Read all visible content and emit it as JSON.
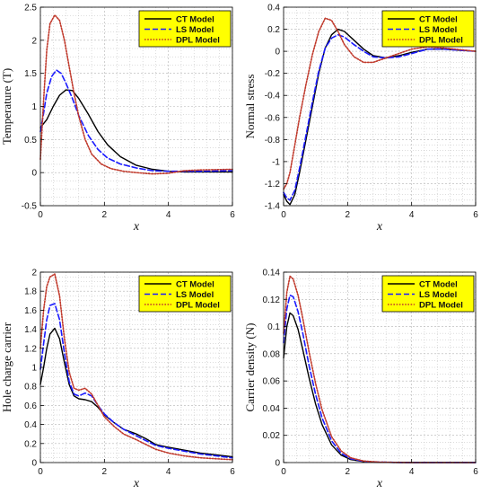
{
  "legend_fill": "#ffff00",
  "grid_color": "#b3b3b3",
  "chart_data": [
    {
      "type": "line",
      "ylabel": "Temperature (T)",
      "xlabel": "x",
      "xlim": [
        0,
        6
      ],
      "ylim": [
        -0.5,
        2.5
      ],
      "xticks": [
        "0",
        "2",
        "4",
        "6"
      ],
      "yticks": [
        "-0.5",
        "0",
        "0.5",
        "1",
        "1.5",
        "2",
        "2.5"
      ],
      "grid": true,
      "legend_position": "top-right",
      "series": [
        {
          "name": "CT Model",
          "color": "#000000",
          "dash": "solid",
          "x": [
            0,
            0.2,
            0.4,
            0.6,
            0.8,
            1.0,
            1.2,
            1.5,
            1.8,
            2.1,
            2.5,
            3.0,
            3.5,
            4.0,
            4.5,
            5.0,
            6.0
          ],
          "y": [
            0.68,
            0.8,
            1.0,
            1.17,
            1.25,
            1.24,
            1.12,
            0.88,
            0.62,
            0.42,
            0.24,
            0.11,
            0.05,
            0.02,
            0.01,
            0.01,
            0.01
          ]
        },
        {
          "name": "LS Model",
          "color": "#1a1aff",
          "dash": "dashed",
          "x": [
            0,
            0.1,
            0.2,
            0.35,
            0.5,
            0.65,
            0.8,
            1.0,
            1.2,
            1.5,
            1.8,
            2.1,
            2.5,
            3.0,
            3.5,
            4.0,
            4.5,
            5.0,
            6.0
          ],
          "y": [
            0.62,
            0.9,
            1.2,
            1.45,
            1.55,
            1.5,
            1.35,
            1.12,
            0.86,
            0.56,
            0.35,
            0.22,
            0.13,
            0.07,
            0.03,
            0.02,
            0.02,
            0.02,
            0.03
          ]
        },
        {
          "name": "DPL Model",
          "color": "#c0392b",
          "dash": "dotted",
          "x": [
            0,
            0.1,
            0.2,
            0.3,
            0.45,
            0.6,
            0.75,
            0.9,
            1.05,
            1.2,
            1.4,
            1.6,
            1.9,
            2.2,
            2.6,
            3.0,
            3.5,
            4.0,
            4.5,
            5.0,
            6.0
          ],
          "y": [
            0.2,
            1.1,
            1.85,
            2.25,
            2.38,
            2.3,
            2.0,
            1.6,
            1.2,
            0.85,
            0.5,
            0.28,
            0.13,
            0.06,
            0.02,
            0.0,
            -0.02,
            -0.01,
            0.03,
            0.04,
            0.05
          ]
        }
      ]
    },
    {
      "type": "line",
      "ylabel": "Normal stress",
      "xlabel": "x",
      "xlim": [
        0,
        6
      ],
      "ylim": [
        -1.4,
        0.4
      ],
      "xticks": [
        "0",
        "2",
        "4",
        "6"
      ],
      "yticks": [
        "-1.4",
        "-1.2",
        "-1",
        "-0.8",
        "-0.6",
        "-0.4",
        "-0.2",
        "0",
        "0.2",
        "0.4"
      ],
      "grid": true,
      "legend_position": "top-right",
      "series": [
        {
          "name": "CT Model",
          "color": "#000000",
          "dash": "solid",
          "x": [
            0,
            0.1,
            0.2,
            0.35,
            0.5,
            0.7,
            0.9,
            1.1,
            1.3,
            1.5,
            1.7,
            1.9,
            2.2,
            2.5,
            2.8,
            3.2,
            3.6,
            4.0,
            4.5,
            5.0,
            6.0
          ],
          "y": [
            -1.3,
            -1.36,
            -1.39,
            -1.3,
            -1.1,
            -0.8,
            -0.5,
            -0.2,
            0.03,
            0.15,
            0.2,
            0.18,
            0.1,
            0.02,
            -0.04,
            -0.06,
            -0.04,
            -0.01,
            0.02,
            0.02,
            0.0
          ]
        },
        {
          "name": "LS Model",
          "color": "#1a1aff",
          "dash": "dashed",
          "x": [
            0,
            0.1,
            0.2,
            0.35,
            0.5,
            0.7,
            0.9,
            1.1,
            1.3,
            1.5,
            1.7,
            1.9,
            2.2,
            2.5,
            2.8,
            3.2,
            3.6,
            4.0,
            4.5,
            5.0,
            6.0
          ],
          "y": [
            -1.28,
            -1.33,
            -1.35,
            -1.26,
            -1.06,
            -0.76,
            -0.46,
            -0.18,
            0.03,
            0.12,
            0.15,
            0.13,
            0.06,
            0.0,
            -0.05,
            -0.06,
            -0.05,
            -0.02,
            0.02,
            0.02,
            0.0
          ]
        },
        {
          "name": "DPL Model",
          "color": "#c0392b",
          "dash": "dotted",
          "x": [
            0,
            0.1,
            0.2,
            0.35,
            0.5,
            0.7,
            0.9,
            1.1,
            1.3,
            1.5,
            1.7,
            1.9,
            2.2,
            2.5,
            2.8,
            3.2,
            3.6,
            4.0,
            4.5,
            5.0,
            6.0
          ],
          "y": [
            -1.25,
            -1.2,
            -1.1,
            -0.85,
            -0.6,
            -0.3,
            -0.03,
            0.18,
            0.3,
            0.28,
            0.18,
            0.06,
            -0.05,
            -0.1,
            -0.1,
            -0.06,
            -0.02,
            0.02,
            0.04,
            0.03,
            0.0
          ]
        }
      ]
    },
    {
      "type": "line",
      "ylabel": "Hole charge carrier",
      "xlabel": "x",
      "xlim": [
        0,
        6
      ],
      "ylim": [
        0,
        2
      ],
      "xticks": [
        "0",
        "2",
        "4",
        "6"
      ],
      "yticks": [
        "0",
        "0.2",
        "0.4",
        "0.6",
        "0.8",
        "1",
        "1.2",
        "1.4",
        "1.6",
        "1.8",
        "2"
      ],
      "grid": true,
      "legend_position": "top-right",
      "series": [
        {
          "name": "CT Model",
          "color": "#000000",
          "dash": "solid",
          "x": [
            0,
            0.1,
            0.2,
            0.3,
            0.45,
            0.6,
            0.75,
            0.9,
            1.05,
            1.2,
            1.4,
            1.6,
            1.8,
            2.0,
            2.3,
            2.6,
            3.0,
            3.3,
            3.6,
            4.0,
            4.5,
            5.0,
            5.5,
            6.0
          ],
          "y": [
            0.82,
            1.0,
            1.2,
            1.35,
            1.41,
            1.3,
            1.05,
            0.82,
            0.7,
            0.67,
            0.66,
            0.64,
            0.58,
            0.5,
            0.42,
            0.35,
            0.3,
            0.25,
            0.19,
            0.16,
            0.13,
            0.1,
            0.08,
            0.06
          ]
        },
        {
          "name": "LS Model",
          "color": "#1a1aff",
          "dash": "dashed",
          "x": [
            0,
            0.1,
            0.2,
            0.3,
            0.45,
            0.6,
            0.75,
            0.9,
            1.05,
            1.2,
            1.4,
            1.6,
            1.8,
            2.0,
            2.3,
            2.6,
            3.0,
            3.3,
            3.6,
            4.0,
            4.5,
            5.0,
            5.5,
            6.0
          ],
          "y": [
            0.98,
            1.25,
            1.5,
            1.65,
            1.67,
            1.5,
            1.15,
            0.85,
            0.72,
            0.7,
            0.73,
            0.7,
            0.6,
            0.51,
            0.42,
            0.35,
            0.28,
            0.23,
            0.18,
            0.15,
            0.12,
            0.09,
            0.07,
            0.05
          ]
        },
        {
          "name": "DPL Model",
          "color": "#c0392b",
          "dash": "dotted",
          "x": [
            0,
            0.1,
            0.2,
            0.3,
            0.45,
            0.6,
            0.75,
            0.9,
            1.05,
            1.2,
            1.4,
            1.6,
            1.8,
            2.0,
            2.3,
            2.6,
            3.0,
            3.3,
            3.6,
            4.0,
            4.5,
            5.0,
            5.5,
            6.0
          ],
          "y": [
            1.2,
            1.6,
            1.85,
            1.95,
            1.98,
            1.75,
            1.3,
            0.95,
            0.78,
            0.76,
            0.78,
            0.72,
            0.6,
            0.48,
            0.38,
            0.3,
            0.24,
            0.19,
            0.14,
            0.1,
            0.07,
            0.05,
            0.04,
            0.03
          ]
        }
      ]
    },
    {
      "type": "line",
      "ylabel": "Carrier density (N)",
      "xlabel": "x",
      "xlim": [
        0,
        6
      ],
      "ylim": [
        0,
        0.14
      ],
      "xticks": [
        "0",
        "2",
        "4",
        "6"
      ],
      "yticks": [
        "0",
        "0.02",
        "0.04",
        "0.06",
        "0.08",
        "0.1",
        "0.12",
        "0.14"
      ],
      "grid": true,
      "legend_position": "top-right",
      "series": [
        {
          "name": "CT Model",
          "color": "#000000",
          "dash": "solid",
          "x": [
            0,
            0.1,
            0.2,
            0.3,
            0.45,
            0.6,
            0.8,
            1.0,
            1.2,
            1.5,
            1.8,
            2.1,
            2.5,
            3.0,
            3.5,
            4.0,
            5.0,
            6.0
          ],
          "y": [
            0.077,
            0.1,
            0.11,
            0.108,
            0.098,
            0.083,
            0.062,
            0.043,
            0.028,
            0.013,
            0.0055,
            0.0022,
            0.0007,
            0.0002,
            5e-05,
            0,
            0,
            0
          ]
        },
        {
          "name": "LS Model",
          "color": "#1a1aff",
          "dash": "dashed",
          "x": [
            0,
            0.1,
            0.2,
            0.3,
            0.45,
            0.6,
            0.8,
            1.0,
            1.2,
            1.5,
            1.8,
            2.1,
            2.5,
            3.0,
            3.5,
            4.0,
            5.0,
            6.0
          ],
          "y": [
            0.088,
            0.113,
            0.123,
            0.122,
            0.111,
            0.095,
            0.071,
            0.05,
            0.033,
            0.016,
            0.0068,
            0.0028,
            0.0009,
            0.0003,
            0.0001,
            0,
            0,
            0
          ]
        },
        {
          "name": "DPL Model",
          "color": "#c0392b",
          "dash": "dotted",
          "x": [
            0,
            0.1,
            0.2,
            0.3,
            0.45,
            0.6,
            0.8,
            1.0,
            1.2,
            1.5,
            1.8,
            2.1,
            2.5,
            3.0,
            3.5,
            4.0,
            5.0,
            6.0
          ],
          "y": [
            0.095,
            0.125,
            0.137,
            0.135,
            0.123,
            0.106,
            0.081,
            0.058,
            0.039,
            0.019,
            0.0085,
            0.0035,
            0.0011,
            0.0003,
            0.0001,
            0,
            0,
            0
          ]
        }
      ]
    }
  ]
}
